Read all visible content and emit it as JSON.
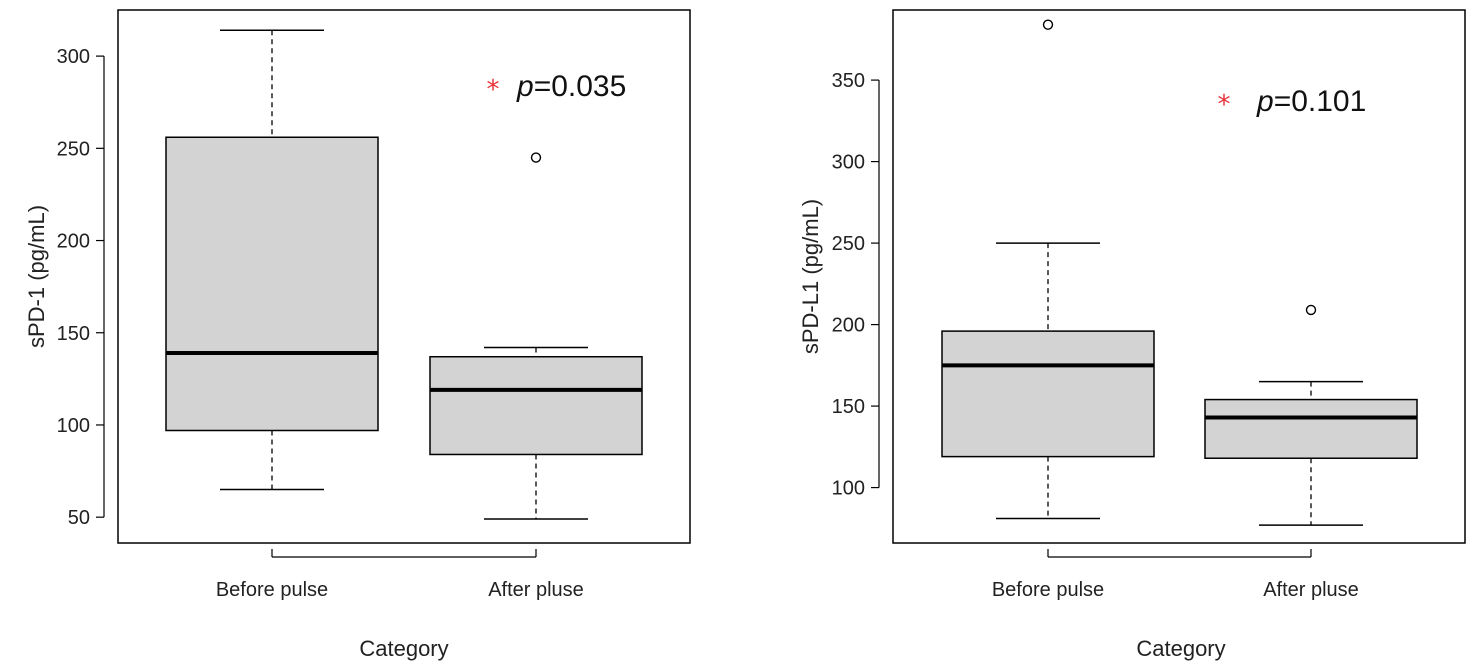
{
  "chart_data": [
    {
      "type": "boxplot",
      "xlabel": "Category",
      "ylabel": "sPD-1 (pg/mL)",
      "ylim": [
        36,
        325
      ],
      "yticks": [
        50,
        100,
        150,
        200,
        250,
        300
      ],
      "categories": [
        "Before pulse",
        "After pluse"
      ],
      "boxes": [
        {
          "category": "Before pulse",
          "whisker_low": 65,
          "q1": 97,
          "median": 139,
          "q3": 256,
          "whisker_high": 314,
          "outliers": []
        },
        {
          "category": "After pluse",
          "whisker_low": 49,
          "q1": 84,
          "median": 119,
          "q3": 137,
          "whisker_high": 142,
          "outliers": [
            245
          ]
        }
      ],
      "annotation": {
        "star": "*",
        "p_label": "p",
        "p_value": "=0.035"
      },
      "box_fill": "#d3d3d3",
      "star_color": "#e8333a"
    },
    {
      "type": "boxplot",
      "xlabel": "Category",
      "ylabel": "sPD-L1 (pg/mL)",
      "ylim": [
        66,
        393
      ],
      "yticks": [
        100,
        150,
        200,
        250,
        300,
        350
      ],
      "categories": [
        "Before pulse",
        "After pluse"
      ],
      "boxes": [
        {
          "category": "Before pulse",
          "whisker_low": 81,
          "q1": 119,
          "median": 175,
          "q3": 196,
          "whisker_high": 250,
          "outliers": [
            384
          ]
        },
        {
          "category": "After pluse",
          "whisker_low": 77,
          "q1": 118,
          "median": 143,
          "q3": 154,
          "whisker_high": 165,
          "outliers": [
            209
          ]
        }
      ],
      "annotation": {
        "star": "*",
        "p_label": "p",
        "p_value": "=0.101"
      },
      "box_fill": "#d3d3d3",
      "star_color": "#e8333a"
    }
  ]
}
